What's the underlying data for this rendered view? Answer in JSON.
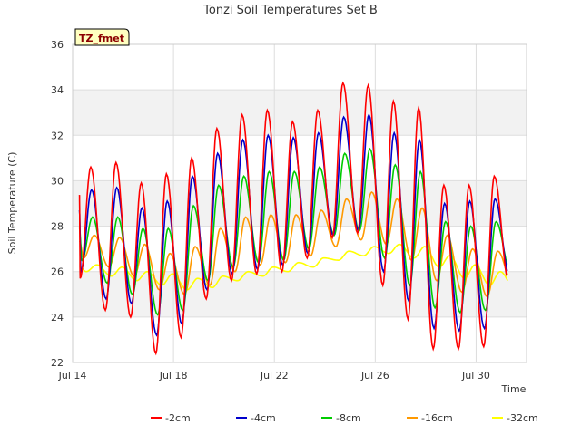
{
  "chart_data": {
    "type": "line",
    "title": "Tonzi Soil Temperatures Set B",
    "xlabel": "Time",
    "ylabel": "Soil Temperature (C)",
    "badge": "TZ_fmet",
    "xlim": [
      14.0,
      32.0
    ],
    "ylim": [
      22,
      36
    ],
    "x_ticks": [
      {
        "value": 14,
        "label": "Jul 14"
      },
      {
        "value": 18,
        "label": "Jul 18"
      },
      {
        "value": 22,
        "label": "Jul 22"
      },
      {
        "value": 26,
        "label": "Jul 26"
      },
      {
        "value": 30,
        "label": "Jul 30"
      }
    ],
    "y_ticks": [
      22,
      24,
      26,
      28,
      30,
      32,
      34,
      36
    ],
    "grid": true,
    "band_color": "#f2f2f2",
    "legend_position": "bottom",
    "series": [
      {
        "name": "-2cm",
        "color": "#ff0000",
        "peaks": [
          30.6,
          30.8,
          29.9,
          30.3,
          31.0,
          32.3,
          32.9,
          33.1,
          32.6,
          33.1,
          34.3,
          34.2,
          33.5,
          33.2,
          29.8,
          29.8,
          30.2
        ],
        "troughs": [
          25.7,
          24.3,
          24.0,
          22.4,
          23.1,
          24.8,
          25.6,
          25.9,
          26.0,
          26.6,
          27.5,
          27.7,
          25.4,
          23.9,
          22.6,
          22.6,
          22.7,
          25.5
        ]
      },
      {
        "name": "-4cm",
        "color": "#0000cc",
        "peaks": [
          29.6,
          29.7,
          28.8,
          29.1,
          30.2,
          31.2,
          31.8,
          32.0,
          31.9,
          32.1,
          32.8,
          32.9,
          32.1,
          31.8,
          29.0,
          29.1,
          29.2
        ],
        "troughs": [
          26.0,
          24.8,
          24.6,
          23.2,
          23.7,
          25.2,
          25.9,
          26.1,
          26.3,
          26.8,
          27.6,
          27.8,
          26.0,
          24.7,
          23.5,
          23.4,
          23.5,
          25.8
        ]
      },
      {
        "name": "-8cm",
        "color": "#00cc00",
        "peaks": [
          28.4,
          28.4,
          27.9,
          27.9,
          28.9,
          29.8,
          30.2,
          30.4,
          30.4,
          30.6,
          31.2,
          31.4,
          30.7,
          30.4,
          28.2,
          28.0,
          28.2
        ],
        "troughs": [
          26.5,
          25.5,
          25.0,
          24.1,
          24.3,
          25.6,
          26.2,
          26.4,
          26.5,
          27.0,
          27.6,
          27.8,
          26.6,
          25.4,
          24.4,
          24.2,
          24.3,
          26.0
        ]
      },
      {
        "name": "-16cm",
        "color": "#ff9900",
        "peaks": [
          27.6,
          27.5,
          27.2,
          26.8,
          27.1,
          27.9,
          28.4,
          28.5,
          28.5,
          28.7,
          29.2,
          29.5,
          29.2,
          28.8,
          27.6,
          27.0,
          26.9
        ],
        "troughs": [
          26.6,
          26.2,
          25.8,
          25.2,
          25.0,
          25.4,
          26.0,
          26.3,
          26.4,
          26.7,
          27.1,
          27.4,
          27.2,
          26.5,
          25.6,
          25.1,
          24.9,
          25.5
        ]
      },
      {
        "name": "-32cm",
        "color": "#ffff00",
        "peaks": [
          26.3,
          26.2,
          26.0,
          25.9,
          25.7,
          25.8,
          26.0,
          26.2,
          26.4,
          26.6,
          26.9,
          27.1,
          27.2,
          27.1,
          26.7,
          26.3,
          26.0
        ],
        "troughs": [
          26.0,
          25.8,
          25.6,
          25.4,
          25.2,
          25.3,
          25.6,
          25.8,
          26.0,
          26.2,
          26.5,
          26.7,
          26.8,
          26.6,
          26.2,
          25.7,
          25.4,
          25.2
        ]
      }
    ]
  }
}
